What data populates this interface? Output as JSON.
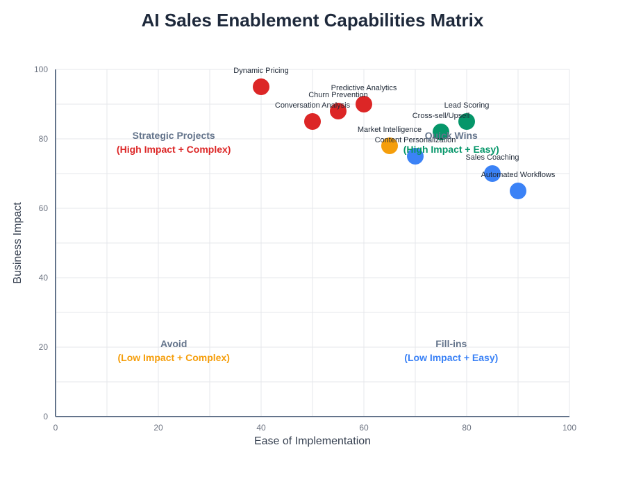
{
  "chart_data": {
    "type": "scatter",
    "title": "AI Sales Enablement Capabilities Matrix",
    "xlabel": "Ease of Implementation",
    "ylabel": "Business Impact",
    "xlim": [
      0,
      100
    ],
    "ylim": [
      0,
      100
    ],
    "x_ticks": [
      0,
      20,
      40,
      60,
      80,
      100
    ],
    "y_ticks": [
      0,
      20,
      40,
      60,
      80,
      100
    ],
    "grid": true,
    "points": [
      {
        "name": "Dynamic Pricing",
        "x": 40,
        "y": 95,
        "category": "Strategic Projects",
        "color": "#dc2626"
      },
      {
        "name": "Conversation Analysis",
        "x": 50,
        "y": 85,
        "category": "Strategic Projects",
        "color": "#dc2626"
      },
      {
        "name": "Churn Prevention",
        "x": 55,
        "y": 88,
        "category": "Strategic Projects",
        "color": "#dc2626"
      },
      {
        "name": "Predictive Analytics",
        "x": 60,
        "y": 90,
        "category": "Strategic Projects",
        "color": "#dc2626"
      },
      {
        "name": "Market Intelligence",
        "x": 65,
        "y": 78,
        "category": "Avoid",
        "color": "#f59e0b"
      },
      {
        "name": "Content Personalization",
        "x": 70,
        "y": 75,
        "category": "Fill-ins",
        "color": "#3b82f6"
      },
      {
        "name": "Cross-sell/Upsell",
        "x": 75,
        "y": 82,
        "category": "Quick Wins",
        "color": "#059669"
      },
      {
        "name": "Lead Scoring",
        "x": 80,
        "y": 85,
        "category": "Quick Wins",
        "color": "#059669"
      },
      {
        "name": "Sales Coaching",
        "x": 85,
        "y": 70,
        "category": "Fill-ins",
        "color": "#3b82f6"
      },
      {
        "name": "Automated Workflows",
        "x": 90,
        "y": 65,
        "category": "Fill-ins",
        "color": "#3b82f6"
      }
    ],
    "quadrants": [
      {
        "title": "Strategic Projects",
        "subtitle": "(High Impact + Complex)",
        "x": 23,
        "y": 80,
        "color": "#dc2626"
      },
      {
        "title": "Quick Wins",
        "subtitle": "(High Impact + Easy)",
        "x": 77,
        "y": 80,
        "color": "#059669"
      },
      {
        "title": "Avoid",
        "subtitle": "(Low Impact + Complex)",
        "x": 23,
        "y": 20,
        "color": "#f59e0b"
      },
      {
        "title": "Fill-ins",
        "subtitle": "(Low Impact + Easy)",
        "x": 77,
        "y": 20,
        "color": "#3b82f6"
      }
    ]
  }
}
